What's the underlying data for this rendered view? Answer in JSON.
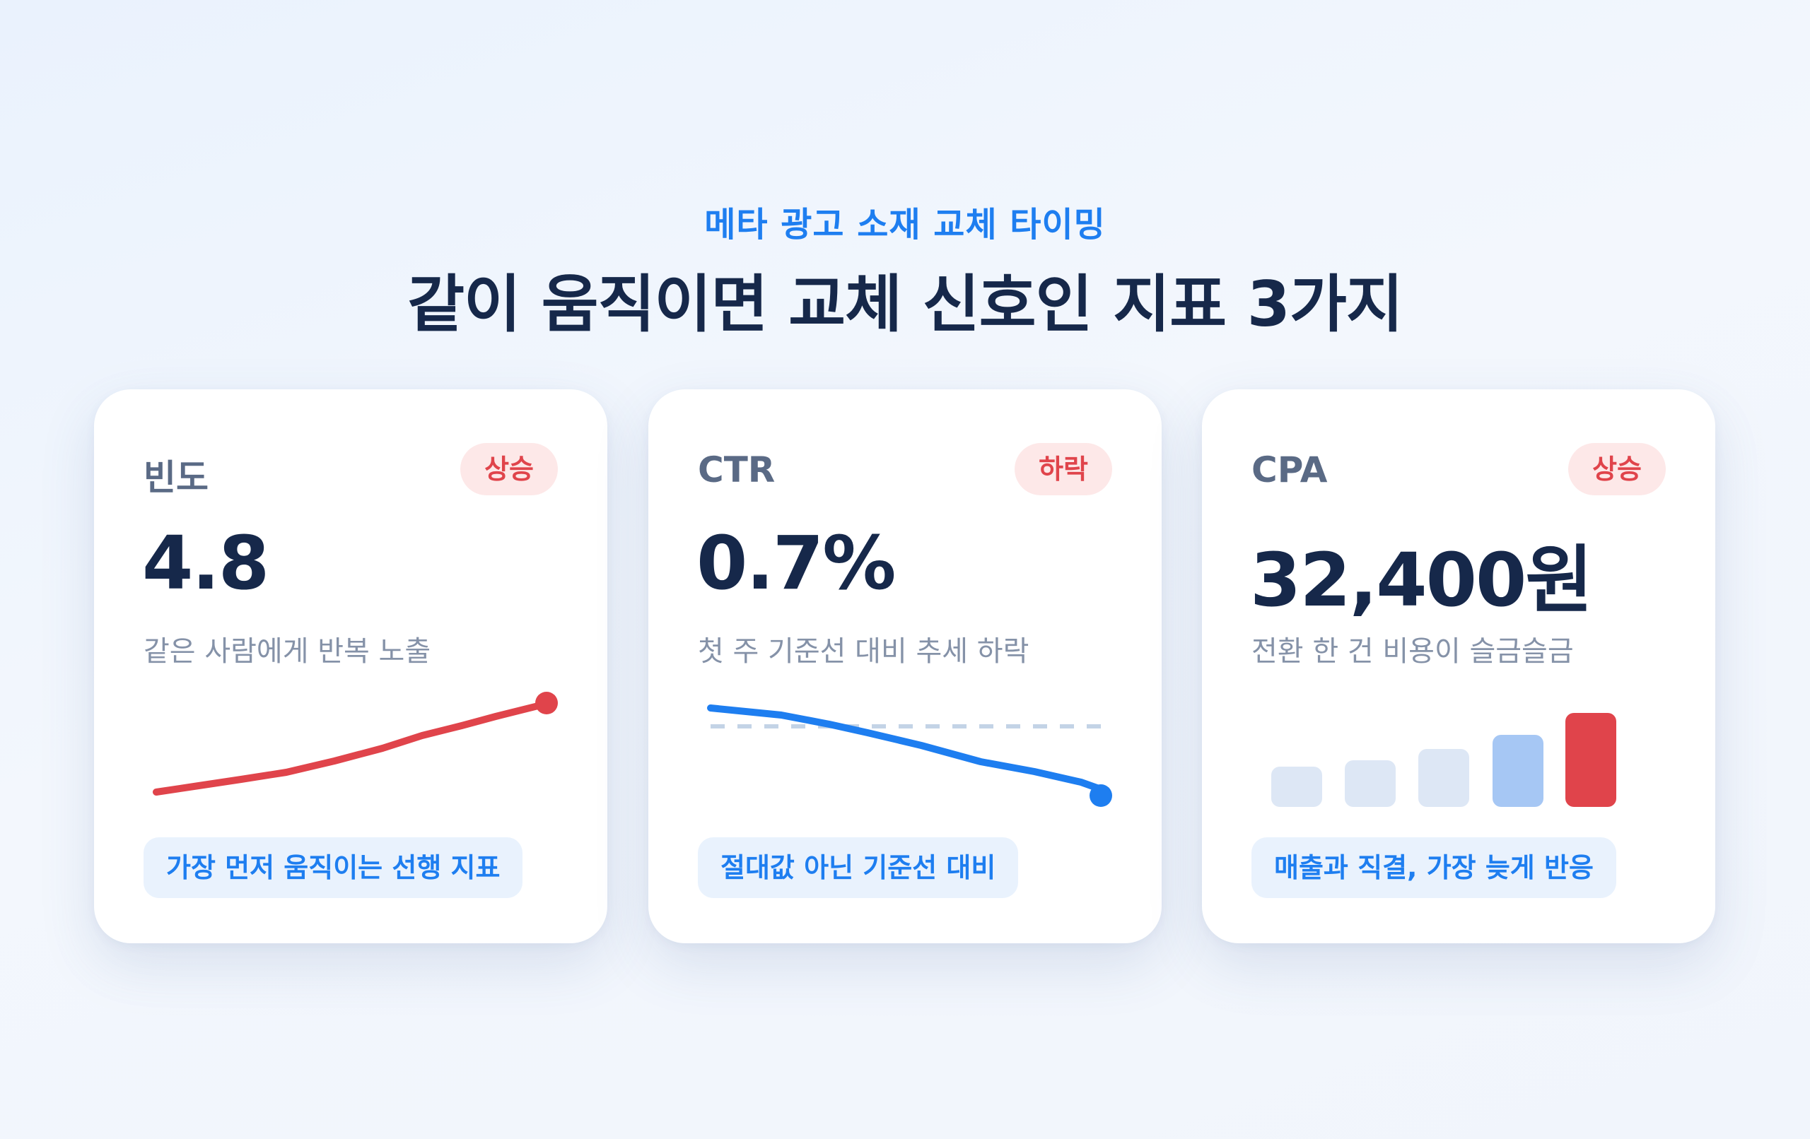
{
  "header": {
    "kicker": "메타 광고 소재 교체 타이밍",
    "title": "같이 움직이면 교체 신호인 지표 3가지"
  },
  "colors": {
    "accent_blue": "#1e7ef0",
    "up_red": "#e0444b",
    "navy": "#16284a"
  },
  "cards": [
    {
      "label": "빈도",
      "badge": "상승",
      "value": "4.8",
      "description": "같은 사람에게 반복 노출",
      "note": "가장 먼저 움직이는 선행 지표",
      "trend_icon": "line-chart-up-icon"
    },
    {
      "label": "CTR",
      "badge": "하락",
      "value": "0.7%",
      "description": "첫 주 기준선 대비 추세 하락",
      "note": "절대값 아닌 기준선 대비",
      "trend_icon": "line-chart-down-icon"
    },
    {
      "label": "CPA",
      "badge": "상승",
      "value": "32,400원",
      "description": "전환 한 건 비용이 슬금슬금",
      "note": "매출과 직결, 가장 늦게 반응",
      "trend_icon": "bar-chart-up-icon"
    }
  ]
}
